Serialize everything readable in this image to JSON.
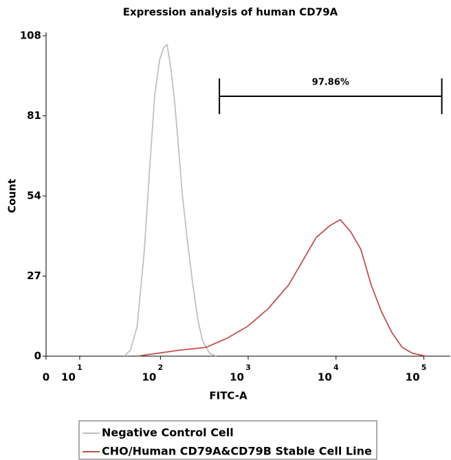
{
  "chart_data": {
    "type": "line",
    "title": "Expression analysis of human CD79A",
    "x_label": "FITC-A",
    "y_label": "Count",
    "xscale": "asinh",
    "xlim": [
      0,
      200000
    ],
    "ylim": [
      0,
      108
    ],
    "xticks": [
      0,
      {
        "value": 10,
        "label": "10",
        "exponent": "1"
      },
      {
        "value": 100,
        "label": "10",
        "exponent": "2"
      },
      {
        "value": 1000,
        "label": "10",
        "exponent": "3"
      },
      {
        "value": 10000,
        "label": "10",
        "exponent": "4"
      },
      {
        "value": 100000,
        "label": "10",
        "exponent": "5"
      }
    ],
    "yticks": [
      0,
      27,
      54,
      81,
      108
    ],
    "gate": {
      "label": "97.86%",
      "x": [
        470,
        160000
      ]
    },
    "series": [
      {
        "name": "Negative Control Cell",
        "color": "#c0c0c0",
        "x": [
          38,
          45,
          54,
          65,
          76,
          86,
          98,
          109,
          119,
          130,
          143,
          156,
          177,
          201,
          232,
          268,
          304,
          364,
          436
        ],
        "values": [
          0,
          2,
          10,
          35,
          65,
          88,
          100,
          104,
          105,
          98,
          88,
          75,
          55,
          40,
          25,
          12,
          5,
          1,
          0
        ]
      },
      {
        "name": "CHO/Human CD79A&CD79B Stable Cell Line",
        "color": "#c0504d",
        "x": [
          54,
          94,
          162,
          333,
          571,
          981,
          1685,
          2890,
          4145,
          5945,
          8525,
          11175,
          14640,
          19185,
          25125,
          32925,
          43130,
          56500,
          74000,
          106100
        ],
        "values": [
          0,
          1,
          2,
          3,
          6,
          10,
          16,
          24,
          32,
          40,
          44,
          46,
          42,
          36,
          24,
          15,
          8,
          3,
          1,
          0
        ]
      }
    ]
  }
}
